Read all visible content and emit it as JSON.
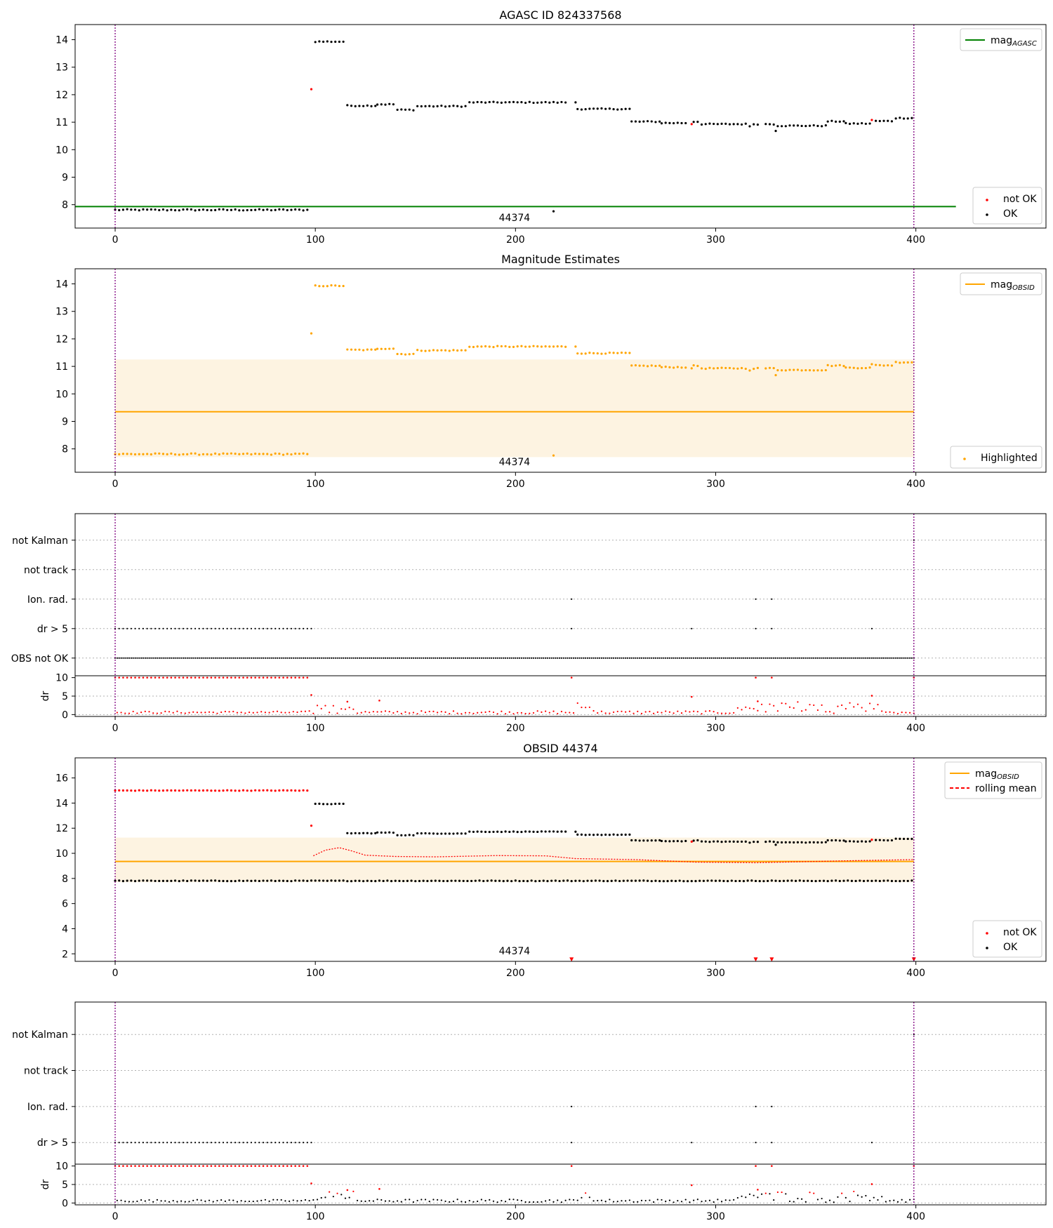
{
  "chart_data": [
    {
      "type": "scatter",
      "title": "AGASC ID 824337568",
      "annotation": "44374",
      "xlim": [
        -20,
        465
      ],
      "ylim": [
        7.15,
        14.55
      ],
      "xticks": [
        0,
        100,
        200,
        300,
        400
      ],
      "yticks": [
        8,
        9,
        10,
        11,
        12,
        13,
        14
      ],
      "vlines": [
        0,
        399
      ],
      "hline": {
        "name": "mag_AGASC",
        "y": 7.93,
        "x": [
          -20,
          420
        ],
        "color": "#008000"
      },
      "legend_top": [
        {
          "name": "mag",
          "sub": "AGASC",
          "kind": "line",
          "color": "#008000"
        }
      ],
      "legend_bottom": [
        {
          "name": "not OK",
          "color": "#ff0000"
        },
        {
          "name": "OK",
          "color": "#000000"
        }
      ],
      "series": [
        {
          "name": "OK",
          "color": "#000000",
          "segments": [
            [
              0,
              97,
              7.81
            ],
            [
              100,
              115,
              13.93
            ],
            [
              116,
              130,
              11.6
            ],
            [
              131,
              140,
              11.65
            ],
            [
              141,
              150,
              11.45
            ],
            [
              151,
              176,
              11.58
            ],
            [
              177,
              226,
              11.72
            ],
            [
              231,
              257,
              11.48
            ],
            [
              258,
              272,
              11.02
            ],
            [
              273,
              286,
              10.97
            ],
            [
              289,
              292,
              11.02
            ],
            [
              293,
              316,
              10.93
            ],
            [
              319,
              322,
              10.93
            ],
            [
              325,
              329,
              10.93
            ],
            [
              331,
              355,
              10.87
            ],
            [
              356,
              364,
              11.03
            ],
            [
              365,
              377,
              10.95
            ],
            [
              380,
              389,
              11.04
            ],
            [
              390,
              399,
              11.15
            ]
          ],
          "points": [
            [
              230,
              11.72
            ],
            [
              317,
              10.85
            ],
            [
              330,
              10.68
            ],
            [
              219,
              7.76
            ]
          ]
        },
        {
          "name": "not OK",
          "color": "#ff0000",
          "points": [
            [
              98,
              12.2
            ],
            [
              288,
              10.93
            ],
            [
              378,
              11.08
            ]
          ]
        }
      ]
    },
    {
      "type": "scatter",
      "title": "Magnitude Estimates",
      "annotation": "44374",
      "xlim": [
        -20,
        465
      ],
      "ylim": [
        7.15,
        14.55
      ],
      "xticks": [
        0,
        100,
        200,
        300,
        400
      ],
      "yticks": [
        8,
        9,
        10,
        11,
        12,
        13,
        14
      ],
      "vlines": [
        0,
        399
      ],
      "band": {
        "x": [
          0,
          399
        ],
        "y": [
          7.7,
          11.25
        ],
        "color": "#fdf3e1"
      },
      "hline": {
        "name": "mag_OBSID",
        "y": 9.35,
        "x": [
          0,
          399
        ],
        "color": "#ffa500"
      },
      "legend_top": [
        {
          "name": "mag",
          "sub": "OBSID",
          "kind": "line",
          "color": "#ffa500"
        }
      ],
      "legend_bottom": [
        {
          "name": "Highlighted",
          "color": "#ffa500"
        }
      ],
      "series": [
        {
          "name": "Highlighted",
          "color": "#ffa500",
          "segments": [
            [
              0,
              97,
              7.81
            ],
            [
              100,
              115,
              13.93
            ],
            [
              116,
              130,
              11.6
            ],
            [
              131,
              140,
              11.65
            ],
            [
              141,
              150,
              11.45
            ],
            [
              151,
              176,
              11.58
            ],
            [
              177,
              226,
              11.72
            ],
            [
              231,
              257,
              11.48
            ],
            [
              258,
              272,
              11.02
            ],
            [
              273,
              286,
              10.97
            ],
            [
              289,
              292,
              11.02
            ],
            [
              293,
              316,
              10.93
            ],
            [
              319,
              322,
              10.93
            ],
            [
              325,
              329,
              10.93
            ],
            [
              331,
              355,
              10.87
            ],
            [
              356,
              364,
              11.03
            ],
            [
              365,
              377,
              10.95
            ],
            [
              380,
              389,
              11.04
            ],
            [
              390,
              399,
              11.15
            ]
          ],
          "points": [
            [
              230,
              11.72
            ],
            [
              317,
              10.85
            ],
            [
              330,
              10.68
            ],
            [
              219,
              7.76
            ],
            [
              98,
              12.2
            ],
            [
              288,
              10.93
            ],
            [
              378,
              11.08
            ]
          ]
        }
      ]
    },
    {
      "type": "scatter",
      "title": "",
      "xlim": [
        -20,
        465
      ],
      "xticks": [
        0,
        100,
        200,
        300,
        400
      ],
      "vlines": [
        0,
        399
      ],
      "categories": [
        "not Kalman",
        "not track",
        "Ion. rad.",
        "dr > 5",
        "OBS not OK"
      ],
      "flags": {
        "not Kalman": [
          399
        ],
        "not track": [],
        "Ion. rad.": [
          228,
          320,
          328
        ],
        "dr > 5": {
          "range": [
            0,
            98
          ],
          "points": [
            228,
            288,
            320,
            328,
            378
          ]
        },
        "OBS not OK": {
          "range": [
            0,
            399
          ]
        }
      },
      "dr": {
        "ylabel": "dr",
        "yticks": [
          0,
          5,
          10
        ],
        "ylim": [
          -0.5,
          10.5
        ],
        "cap": 10,
        "capped": {
          "range": [
            0,
            96
          ],
          "points": [
            228,
            320,
            328,
            399
          ]
        },
        "spikes": [
          [
            98,
            5.3
          ],
          [
            116,
            3.5
          ],
          [
            132,
            3.8
          ],
          [
            288,
            4.8
          ],
          [
            321,
            3.6
          ],
          [
            378,
            5.1
          ]
        ]
      }
    },
    {
      "type": "scatter",
      "title": "OBSID 44374",
      "annotation": "44374",
      "xlim": [
        -20,
        465
      ],
      "ylim": [
        1.4,
        17.6
      ],
      "xticks": [
        0,
        100,
        200,
        300,
        400
      ],
      "yticks": [
        2,
        4,
        6,
        8,
        10,
        12,
        14,
        16
      ],
      "vlines": [
        0,
        399
      ],
      "band": {
        "x": [
          0,
          399
        ],
        "y": [
          7.7,
          11.25
        ],
        "color": "#fdf3e1"
      },
      "hline": {
        "name": "mag_OBSID",
        "y": 9.35,
        "x": [
          0,
          399
        ],
        "color": "#ffa500"
      },
      "legend_top": [
        {
          "name": "mag",
          "sub": "OBSID",
          "kind": "line",
          "color": "#ffa500"
        },
        {
          "name": "rolling mean",
          "kind": "dashed",
          "color": "#ff0000"
        }
      ],
      "legend_bottom": [
        {
          "name": "not OK",
          "color": "#ff0000"
        },
        {
          "name": "OK",
          "color": "#000000"
        }
      ],
      "series": [
        {
          "name": "OK",
          "color": "#000000",
          "segments": [
            [
              0,
              399,
              7.81
            ],
            [
              100,
              115,
              13.93
            ],
            [
              116,
              130,
              11.6
            ],
            [
              131,
              140,
              11.65
            ],
            [
              141,
              150,
              11.45
            ],
            [
              151,
              176,
              11.58
            ],
            [
              177,
              226,
              11.72
            ],
            [
              231,
              257,
              11.48
            ],
            [
              258,
              272,
              11.02
            ],
            [
              273,
              286,
              10.97
            ],
            [
              289,
              292,
              11.02
            ],
            [
              293,
              316,
              10.93
            ],
            [
              319,
              322,
              10.93
            ],
            [
              325,
              329,
              10.93
            ],
            [
              331,
              355,
              10.87
            ],
            [
              356,
              364,
              11.03
            ],
            [
              365,
              377,
              10.95
            ],
            [
              380,
              389,
              11.04
            ],
            [
              390,
              399,
              11.15
            ]
          ],
          "points": [
            [
              230,
              11.72
            ],
            [
              317,
              10.85
            ],
            [
              330,
              10.68
            ]
          ]
        },
        {
          "name": "not OK",
          "color": "#ff0000",
          "segments": [
            [
              0,
              97,
              15.0
            ]
          ],
          "points": [
            [
              98,
              12.2
            ],
            [
              288,
              10.93
            ],
            [
              378,
              11.08
            ]
          ]
        },
        {
          "name": "rolling mean",
          "color": "#ff0000",
          "line": [
            [
              99,
              9.8
            ],
            [
              105,
              10.25
            ],
            [
              112,
              10.45
            ],
            [
              118,
              10.2
            ],
            [
              125,
              9.85
            ],
            [
              140,
              9.75
            ],
            [
              160,
              9.72
            ],
            [
              190,
              9.82
            ],
            [
              215,
              9.8
            ],
            [
              230,
              9.58
            ],
            [
              260,
              9.5
            ],
            [
              290,
              9.3
            ],
            [
              320,
              9.25
            ],
            [
              340,
              9.32
            ],
            [
              370,
              9.42
            ],
            [
              399,
              9.5
            ]
          ]
        }
      ],
      "markers": [
        [
          228,
          1.55
        ],
        [
          320,
          1.55
        ],
        [
          328,
          1.55
        ],
        [
          399,
          1.55
        ]
      ]
    },
    {
      "type": "scatter",
      "title": "",
      "xlim": [
        -20,
        465
      ],
      "xticks": [
        0,
        100,
        200,
        300,
        400
      ],
      "vlines": [
        0,
        399
      ],
      "categories": [
        "not Kalman",
        "not track",
        "Ion. rad.",
        "dr > 5"
      ],
      "flags": {
        "not Kalman": [
          399
        ],
        "not track": [],
        "Ion. rad.": [
          228,
          320,
          328
        ],
        "dr > 5": {
          "range": [
            0,
            98
          ],
          "points": [
            228,
            288,
            320,
            328,
            378
          ]
        }
      },
      "dr": {
        "ylabel": "dr",
        "yticks": [
          0,
          5,
          10
        ],
        "ylim": [
          -0.5,
          10.5
        ],
        "cap": 10,
        "capped": {
          "range": [
            0,
            96
          ],
          "points": [
            228,
            320,
            328,
            399
          ]
        },
        "spikes": [
          [
            98,
            5.3
          ],
          [
            116,
            3.5
          ],
          [
            132,
            3.8
          ],
          [
            288,
            4.8
          ],
          [
            321,
            3.6
          ],
          [
            378,
            5.1
          ]
        ]
      }
    }
  ]
}
